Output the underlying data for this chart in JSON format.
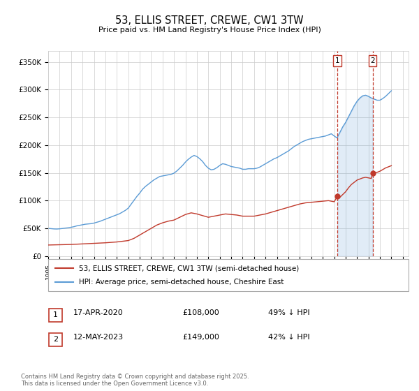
{
  "title": "53, ELLIS STREET, CREWE, CW1 3TW",
  "subtitle": "Price paid vs. HM Land Registry's House Price Index (HPI)",
  "yticks": [
    0,
    50000,
    100000,
    150000,
    200000,
    250000,
    300000,
    350000
  ],
  "ytick_labels": [
    "£0",
    "£50K",
    "£100K",
    "£150K",
    "£200K",
    "£250K",
    "£300K",
    "£350K"
  ],
  "xlim_start": 1995.0,
  "xlim_end": 2026.5,
  "ylim": [
    0,
    370000
  ],
  "hpi_color": "#5b9bd5",
  "price_color": "#c0392b",
  "vline_color": "#c0392b",
  "marker1_x": 2020.29,
  "marker1_y": 108000,
  "marker2_x": 2023.36,
  "marker2_y": 149000,
  "legend_line1": "53, ELLIS STREET, CREWE, CW1 3TW (semi-detached house)",
  "legend_line2": "HPI: Average price, semi-detached house, Cheshire East",
  "footnote": "Contains HM Land Registry data © Crown copyright and database right 2025.\nThis data is licensed under the Open Government Licence v3.0.",
  "background_color": "#ffffff",
  "grid_color": "#cccccc",
  "hpi_data": [
    [
      1995,
      50000
    ],
    [
      1995.25,
      49500
    ],
    [
      1995.5,
      49000
    ],
    [
      1995.75,
      48800
    ],
    [
      1996,
      49200
    ],
    [
      1996.25,
      49800
    ],
    [
      1996.5,
      50500
    ],
    [
      1996.75,
      51000
    ],
    [
      1997,
      52000
    ],
    [
      1997.25,
      53000
    ],
    [
      1997.5,
      54500
    ],
    [
      1997.75,
      55500
    ],
    [
      1998,
      56500
    ],
    [
      1998.25,
      57500
    ],
    [
      1998.5,
      58000
    ],
    [
      1998.75,
      58500
    ],
    [
      1999,
      59500
    ],
    [
      1999.25,
      61000
    ],
    [
      1999.5,
      62500
    ],
    [
      1999.75,
      64500
    ],
    [
      2000,
      66500
    ],
    [
      2000.25,
      68500
    ],
    [
      2000.5,
      70500
    ],
    [
      2000.75,
      72500
    ],
    [
      2001,
      74500
    ],
    [
      2001.25,
      76500
    ],
    [
      2001.5,
      79500
    ],
    [
      2001.75,
      82500
    ],
    [
      2002,
      86500
    ],
    [
      2002.25,
      93500
    ],
    [
      2002.5,
      100500
    ],
    [
      2002.75,
      107500
    ],
    [
      2003,
      113500
    ],
    [
      2003.25,
      120500
    ],
    [
      2003.5,
      125500
    ],
    [
      2003.75,
      129500
    ],
    [
      2004,
      133500
    ],
    [
      2004.25,
      137500
    ],
    [
      2004.5,
      140500
    ],
    [
      2004.75,
      143500
    ],
    [
      2005,
      144500
    ],
    [
      2005.25,
      145500
    ],
    [
      2005.5,
      146500
    ],
    [
      2005.75,
      147500
    ],
    [
      2006,
      149500
    ],
    [
      2006.25,
      153500
    ],
    [
      2006.5,
      158500
    ],
    [
      2006.75,
      163500
    ],
    [
      2007,
      169500
    ],
    [
      2007.25,
      174500
    ],
    [
      2007.5,
      178500
    ],
    [
      2007.75,
      181500
    ],
    [
      2008,
      179500
    ],
    [
      2008.25,
      175500
    ],
    [
      2008.5,
      170500
    ],
    [
      2008.75,
      163500
    ],
    [
      2009,
      158500
    ],
    [
      2009.25,
      155500
    ],
    [
      2009.5,
      156500
    ],
    [
      2009.75,
      159500
    ],
    [
      2010,
      163500
    ],
    [
      2010.25,
      166500
    ],
    [
      2010.5,
      165500
    ],
    [
      2010.75,
      163500
    ],
    [
      2011,
      161500
    ],
    [
      2011.25,
      160500
    ],
    [
      2011.5,
      159500
    ],
    [
      2011.75,
      158500
    ],
    [
      2012,
      156500
    ],
    [
      2012.25,
      156500
    ],
    [
      2012.5,
      157500
    ],
    [
      2012.75,
      157500
    ],
    [
      2013,
      157500
    ],
    [
      2013.25,
      158500
    ],
    [
      2013.5,
      160500
    ],
    [
      2013.75,
      163500
    ],
    [
      2014,
      166500
    ],
    [
      2014.25,
      169500
    ],
    [
      2014.5,
      172500
    ],
    [
      2014.75,
      175500
    ],
    [
      2015,
      177500
    ],
    [
      2015.25,
      180500
    ],
    [
      2015.5,
      183500
    ],
    [
      2015.75,
      186500
    ],
    [
      2016,
      189500
    ],
    [
      2016.25,
      193500
    ],
    [
      2016.5,
      197500
    ],
    [
      2016.75,
      200500
    ],
    [
      2017,
      203500
    ],
    [
      2017.25,
      206500
    ],
    [
      2017.5,
      208500
    ],
    [
      2017.75,
      210500
    ],
    [
      2018,
      211500
    ],
    [
      2018.25,
      212500
    ],
    [
      2018.5,
      213500
    ],
    [
      2018.75,
      214500
    ],
    [
      2019,
      215500
    ],
    [
      2019.25,
      216500
    ],
    [
      2019.5,
      218500
    ],
    [
      2019.75,
      220500
    ],
    [
      2020,
      216500
    ],
    [
      2020.25,
      213000
    ],
    [
      2020.5,
      223000
    ],
    [
      2020.75,
      233000
    ],
    [
      2021,
      241000
    ],
    [
      2021.25,
      251000
    ],
    [
      2021.5,
      261000
    ],
    [
      2021.75,
      271000
    ],
    [
      2022,
      279000
    ],
    [
      2022.25,
      285000
    ],
    [
      2022.5,
      289000
    ],
    [
      2022.75,
      290000
    ],
    [
      2023,
      288000
    ],
    [
      2023.25,
      285000
    ],
    [
      2023.5,
      283000
    ],
    [
      2023.75,
      281000
    ],
    [
      2024,
      281000
    ],
    [
      2024.25,
      284000
    ],
    [
      2024.5,
      288000
    ],
    [
      2024.75,
      293000
    ],
    [
      2025,
      298000
    ]
  ],
  "price_data": [
    [
      1995,
      20000
    ],
    [
      1996,
      20500
    ],
    [
      1997,
      21000
    ],
    [
      1998,
      22000
    ],
    [
      1999,
      23000
    ],
    [
      2000,
      24000
    ],
    [
      2001,
      25500
    ],
    [
      2002,
      28000
    ],
    [
      2002.5,
      32000
    ],
    [
      2003,
      38000
    ],
    [
      2003.5,
      44000
    ],
    [
      2004,
      50000
    ],
    [
      2004.5,
      56000
    ],
    [
      2005,
      60000
    ],
    [
      2005.5,
      63000
    ],
    [
      2006,
      65000
    ],
    [
      2006.5,
      70000
    ],
    [
      2007,
      75000
    ],
    [
      2007.5,
      78000
    ],
    [
      2008,
      76000
    ],
    [
      2008.5,
      73000
    ],
    [
      2009,
      70000
    ],
    [
      2009.5,
      72000
    ],
    [
      2010,
      74000
    ],
    [
      2010.5,
      76000
    ],
    [
      2011,
      75000
    ],
    [
      2011.5,
      74000
    ],
    [
      2012,
      72000
    ],
    [
      2012.5,
      72000
    ],
    [
      2013,
      72000
    ],
    [
      2013.5,
      74000
    ],
    [
      2014,
      76000
    ],
    [
      2014.5,
      79000
    ],
    [
      2015,
      82000
    ],
    [
      2015.5,
      85000
    ],
    [
      2016,
      88000
    ],
    [
      2016.5,
      91000
    ],
    [
      2017,
      94000
    ],
    [
      2017.5,
      96000
    ],
    [
      2018,
      97000
    ],
    [
      2018.5,
      98000
    ],
    [
      2019,
      99000
    ],
    [
      2019.5,
      100000
    ],
    [
      2020,
      98000
    ],
    [
      2020.29,
      108000
    ],
    [
      2020.5,
      106000
    ],
    [
      2020.75,
      111000
    ],
    [
      2021,
      116000
    ],
    [
      2021.25,
      123000
    ],
    [
      2021.5,
      129000
    ],
    [
      2021.75,
      133000
    ],
    [
      2022,
      137000
    ],
    [
      2022.25,
      139000
    ],
    [
      2022.5,
      141000
    ],
    [
      2022.75,
      142000
    ],
    [
      2023,
      141000
    ],
    [
      2023.25,
      140000
    ],
    [
      2023.36,
      149000
    ],
    [
      2023.5,
      149000
    ],
    [
      2023.75,
      151000
    ],
    [
      2024,
      153000
    ],
    [
      2024.25,
      156000
    ],
    [
      2024.5,
      159000
    ],
    [
      2024.75,
      161000
    ],
    [
      2025,
      163000
    ]
  ]
}
